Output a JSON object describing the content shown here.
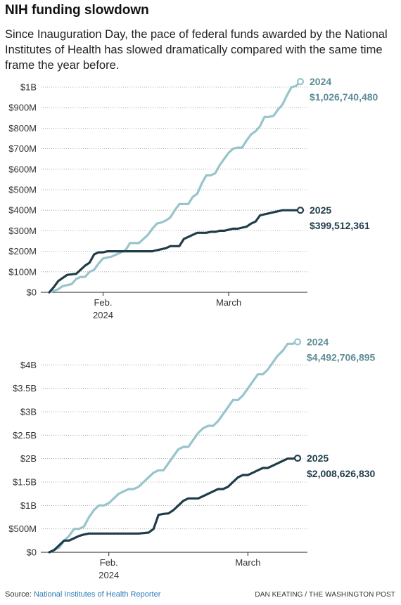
{
  "title": "NIH funding slowdown",
  "subtitle": "Since Inauguration Day, the pace of federal funds awarded by the National Institutes of Health has slowed dramatically compared with the same time frame the year before.",
  "footer": {
    "source_label": "Source:",
    "source_name": "National Institutes of Health Reporter",
    "credit": "DAN KEATING / THE WASHINGTON POST"
  },
  "colors": {
    "series_2024": "#98c4cc",
    "series_2025": "#1f3d49",
    "label_2024": "#5e8d96",
    "label_2025": "#1f3d49",
    "axis": "#333333",
    "grid": "#999999"
  },
  "chart_data": [
    {
      "type": "line",
      "x_unit": "days after Jan. 20",
      "xlim": [
        0,
        70
      ],
      "ylim": [
        0,
        1000000000
      ],
      "yticks": [
        {
          "value": 0,
          "label": "$0"
        },
        {
          "value": 100000000,
          "label": "$100M"
        },
        {
          "value": 200000000,
          "label": "$200M"
        },
        {
          "value": 300000000,
          "label": "$300M"
        },
        {
          "value": 400000000,
          "label": "$400M"
        },
        {
          "value": 500000000,
          "label": "$500M"
        },
        {
          "value": 600000000,
          "label": "$600M"
        },
        {
          "value": 700000000,
          "label": "$700M"
        },
        {
          "value": 800000000,
          "label": "$800M"
        },
        {
          "value": 900000000,
          "label": "$900M"
        },
        {
          "value": 1000000000,
          "label": "$1B"
        }
      ],
      "xticks": [
        {
          "value": 12,
          "label": "Feb.",
          "sublabel": "2024"
        },
        {
          "value": 40,
          "label": "March",
          "sublabel": ""
        }
      ],
      "series": [
        {
          "name": "2024",
          "end_label": "$1,026,740,480",
          "color": "#98c4cc",
          "end_marker": "circle",
          "points": [
            [
              0,
              0
            ],
            [
              2,
              15
            ],
            [
              3,
              30
            ],
            [
              5,
              40
            ],
            [
              6,
              65
            ],
            [
              7,
              75
            ],
            [
              8,
              75
            ],
            [
              9,
              100
            ],
            [
              10,
              110
            ],
            [
              11,
              140
            ],
            [
              12,
              165
            ],
            [
              13,
              170
            ],
            [
              14,
              175
            ],
            [
              15,
              185
            ],
            [
              16,
              195
            ],
            [
              17,
              205
            ],
            [
              18,
              240
            ],
            [
              19,
              240
            ],
            [
              20,
              240
            ],
            [
              21,
              260
            ],
            [
              22,
              280
            ],
            [
              23,
              310
            ],
            [
              24,
              335
            ],
            [
              25,
              340
            ],
            [
              26,
              350
            ],
            [
              27,
              365
            ],
            [
              28,
              400
            ],
            [
              29,
              430
            ],
            [
              30,
              430
            ],
            [
              31,
              430
            ],
            [
              32,
              465
            ],
            [
              33,
              480
            ],
            [
              34,
              530
            ],
            [
              35,
              570
            ],
            [
              36,
              570
            ],
            [
              37,
              580
            ],
            [
              38,
              620
            ],
            [
              39,
              650
            ],
            [
              40,
              680
            ],
            [
              41,
              700
            ],
            [
              42,
              705
            ],
            [
              43,
              705
            ],
            [
              44,
              740
            ],
            [
              45,
              770
            ],
            [
              46,
              785
            ],
            [
              47,
              810
            ],
            [
              48,
              855
            ],
            [
              49,
              855
            ],
            [
              50,
              860
            ],
            [
              51,
              890
            ],
            [
              52,
              915
            ],
            [
              53,
              960
            ],
            [
              54,
              1000
            ],
            [
              55,
              1005
            ],
            [
              56,
              1027
            ]
          ]
        },
        {
          "name": "2025",
          "end_label": "$399,512,361",
          "color": "#1f3d49",
          "end_marker": "circle",
          "points": [
            [
              0,
              0
            ],
            [
              1,
              25
            ],
            [
              2,
              55
            ],
            [
              4,
              85
            ],
            [
              6,
              90
            ],
            [
              7,
              110
            ],
            [
              8,
              130
            ],
            [
              9,
              145
            ],
            [
              10,
              185
            ],
            [
              11,
              195
            ],
            [
              12,
              195
            ],
            [
              13,
              200
            ],
            [
              18,
              200
            ],
            [
              20,
              200
            ],
            [
              21,
              200
            ],
            [
              22,
              200
            ],
            [
              23,
              200
            ],
            [
              24,
              205
            ],
            [
              25,
              210
            ],
            [
              26,
              215
            ],
            [
              27,
              225
            ],
            [
              28,
              225
            ],
            [
              29,
              225
            ],
            [
              30,
              260
            ],
            [
              31,
              270
            ],
            [
              32,
              280
            ],
            [
              33,
              290
            ],
            [
              34,
              290
            ],
            [
              35,
              290
            ],
            [
              36,
              295
            ],
            [
              37,
              295
            ],
            [
              38,
              300
            ],
            [
              39,
              300
            ],
            [
              40,
              305
            ],
            [
              41,
              310
            ],
            [
              42,
              310
            ],
            [
              43,
              315
            ],
            [
              44,
              320
            ],
            [
              45,
              335
            ],
            [
              46,
              345
            ],
            [
              47,
              375
            ],
            [
              48,
              380
            ],
            [
              49,
              385
            ],
            [
              50,
              390
            ],
            [
              51,
              395
            ],
            [
              52,
              400
            ],
            [
              53,
              400
            ],
            [
              54,
              400
            ],
            [
              56,
              400
            ]
          ]
        }
      ]
    },
    {
      "type": "line",
      "x_unit": "days after Jan. 20",
      "xlim": [
        0,
        70
      ],
      "ylim": [
        0,
        4500000000
      ],
      "yticks": [
        {
          "value": 0,
          "label": "$0"
        },
        {
          "value": 500000000,
          "label": "$500M"
        },
        {
          "value": 1000000000,
          "label": "$1B"
        },
        {
          "value": 1500000000,
          "label": "$1.5B"
        },
        {
          "value": 2000000000,
          "label": "$2B"
        },
        {
          "value": 2500000000,
          "label": "$2.5B"
        },
        {
          "value": 3000000000,
          "label": "$3B"
        },
        {
          "value": 3500000000,
          "label": "$3.5B"
        },
        {
          "value": 4000000000,
          "label": "$4B"
        }
      ],
      "xticks": [
        {
          "value": 12,
          "label": "Feb.",
          "sublabel": "2024"
        },
        {
          "value": 40,
          "label": "March",
          "sublabel": ""
        }
      ],
      "series": [
        {
          "name": "2024",
          "end_label": "$4,492,706,895",
          "color": "#98c4cc",
          "end_marker": "circle",
          "points": [
            [
              0,
              0
            ],
            [
              1,
              50
            ],
            [
              2,
              100
            ],
            [
              3,
              250
            ],
            [
              4,
              350
            ],
            [
              5,
              500
            ],
            [
              6,
              500
            ],
            [
              7,
              550
            ],
            [
              8,
              750
            ],
            [
              9,
              900
            ],
            [
              10,
              1000
            ],
            [
              11,
              1000
            ],
            [
              12,
              1050
            ],
            [
              13,
              1150
            ],
            [
              14,
              1250
            ],
            [
              15,
              1300
            ],
            [
              16,
              1350
            ],
            [
              17,
              1350
            ],
            [
              18,
              1400
            ],
            [
              19,
              1500
            ],
            [
              20,
              1600
            ],
            [
              21,
              1700
            ],
            [
              22,
              1750
            ],
            [
              23,
              1750
            ],
            [
              24,
              1900
            ],
            [
              25,
              2050
            ],
            [
              26,
              2200
            ],
            [
              27,
              2250
            ],
            [
              28,
              2250
            ],
            [
              29,
              2400
            ],
            [
              30,
              2550
            ],
            [
              31,
              2650
            ],
            [
              32,
              2700
            ],
            [
              33,
              2700
            ],
            [
              34,
              2800
            ],
            [
              35,
              2950
            ],
            [
              36,
              3100
            ],
            [
              37,
              3250
            ],
            [
              38,
              3250
            ],
            [
              39,
              3350
            ],
            [
              40,
              3500
            ],
            [
              41,
              3650
            ],
            [
              42,
              3800
            ],
            [
              43,
              3800
            ],
            [
              44,
              3900
            ],
            [
              45,
              4050
            ],
            [
              46,
              4200
            ],
            [
              47,
              4300
            ],
            [
              48,
              4450
            ],
            [
              49,
              4450
            ],
            [
              50,
              4493
            ]
          ]
        },
        {
          "name": "2025",
          "end_label": "$2,008,626,830",
          "color": "#1f3d49",
          "end_marker": "circle",
          "points": [
            [
              0,
              0
            ],
            [
              1,
              50
            ],
            [
              2,
              150
            ],
            [
              3,
              250
            ],
            [
              4,
              250
            ],
            [
              5,
              300
            ],
            [
              6,
              350
            ],
            [
              7,
              380
            ],
            [
              8,
              400
            ],
            [
              10,
              400
            ],
            [
              12,
              400
            ],
            [
              14,
              400
            ],
            [
              18,
              400
            ],
            [
              20,
              420
            ],
            [
              21,
              500
            ],
            [
              22,
              800
            ],
            [
              23,
              820
            ],
            [
              24,
              830
            ],
            [
              25,
              900
            ],
            [
              26,
              1000
            ],
            [
              27,
              1100
            ],
            [
              28,
              1150
            ],
            [
              29,
              1150
            ],
            [
              30,
              1150
            ],
            [
              31,
              1200
            ],
            [
              32,
              1250
            ],
            [
              33,
              1300
            ],
            [
              34,
              1350
            ],
            [
              35,
              1350
            ],
            [
              36,
              1400
            ],
            [
              37,
              1500
            ],
            [
              38,
              1600
            ],
            [
              39,
              1650
            ],
            [
              40,
              1650
            ],
            [
              41,
              1700
            ],
            [
              42,
              1750
            ],
            [
              43,
              1800
            ],
            [
              44,
              1800
            ],
            [
              45,
              1850
            ],
            [
              46,
              1900
            ],
            [
              47,
              1950
            ],
            [
              48,
              2000
            ],
            [
              49,
              2000
            ],
            [
              50,
              2009
            ]
          ]
        }
      ]
    }
  ]
}
